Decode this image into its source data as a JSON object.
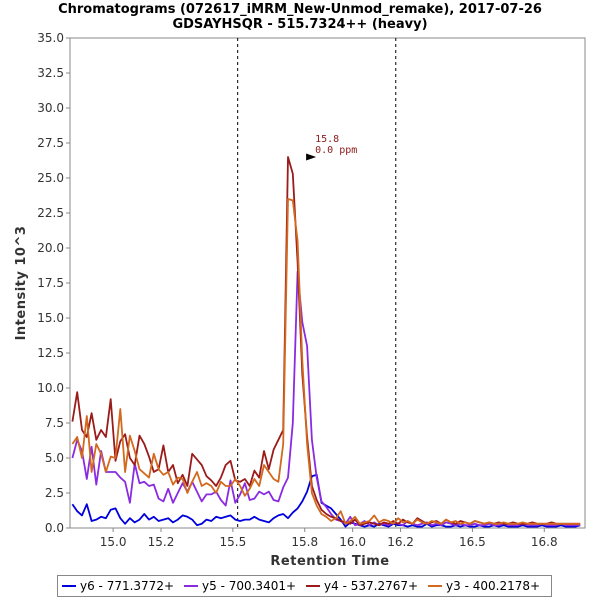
{
  "chart_data": {
    "type": "line",
    "title": "Chromatograms (072617_iMRM_New-Unmod_remake), 2017-07-26",
    "subtitle": "GDSAYHSQR - 515.7324++ (heavy)",
    "xlabel": "Retention Time",
    "ylabel": "Intensity 10^3",
    "xlim": [
      14.82,
      16.97
    ],
    "ylim": [
      0,
      35
    ],
    "x_ticks": [
      "15.0",
      "15.2",
      "15.5",
      "15.8",
      "16.0",
      "16.2",
      "16.5",
      "16.8"
    ],
    "x_tick_values": [
      15.0,
      15.2,
      15.5,
      15.8,
      16.0,
      16.2,
      16.5,
      16.8
    ],
    "y_ticks": [
      "0.0",
      "2.5",
      "5.0",
      "7.5",
      "10.0",
      "12.5",
      "15.0",
      "17.5",
      "20.0",
      "22.5",
      "25.0",
      "27.5",
      "30.0",
      "32.5",
      "35.0"
    ],
    "y_tick_values": [
      0,
      2.5,
      5,
      7.5,
      10,
      12.5,
      15,
      17.5,
      20,
      22.5,
      25,
      27.5,
      30,
      32.5,
      35
    ],
    "boundaries": [
      15.52,
      16.18
    ],
    "grid": false,
    "legend_position": "bottom",
    "annotation": {
      "x": 15.86,
      "y": 26.5,
      "line1": "15.8",
      "line2": "0.0 ppm"
    },
    "series": [
      {
        "name": "y6 - 771.3772+",
        "color": "#0000dd",
        "x": [
          14.83,
          14.85,
          14.87,
          14.89,
          14.91,
          14.93,
          14.95,
          14.97,
          14.99,
          15.01,
          15.03,
          15.05,
          15.07,
          15.09,
          15.11,
          15.13,
          15.15,
          15.17,
          15.19,
          15.21,
          15.23,
          15.25,
          15.27,
          15.29,
          15.31,
          15.33,
          15.35,
          15.37,
          15.39,
          15.41,
          15.43,
          15.45,
          15.47,
          15.49,
          15.51,
          15.53,
          15.55,
          15.57,
          15.59,
          15.61,
          15.63,
          15.65,
          15.67,
          15.69,
          15.71,
          15.73,
          15.75,
          15.77,
          15.79,
          15.81,
          15.83,
          15.85,
          15.87,
          15.89,
          15.91,
          15.93,
          15.95,
          15.97,
          15.99,
          16.01,
          16.03,
          16.05,
          16.07,
          16.09,
          16.11,
          16.13,
          16.15,
          16.17,
          16.19,
          16.21,
          16.23,
          16.25,
          16.27,
          16.29,
          16.31,
          16.33,
          16.35,
          16.37,
          16.39,
          16.41,
          16.43,
          16.45,
          16.47,
          16.49,
          16.51,
          16.53,
          16.55,
          16.57,
          16.59,
          16.61,
          16.63,
          16.65,
          16.67,
          16.69,
          16.71,
          16.73,
          16.75,
          16.77,
          16.79,
          16.81,
          16.83,
          16.85,
          16.87,
          16.89,
          16.91,
          16.93,
          16.95
        ],
        "values": [
          1.7,
          1.2,
          0.9,
          1.7,
          0.5,
          0.6,
          0.8,
          0.7,
          1.3,
          1.4,
          0.7,
          0.3,
          0.7,
          0.4,
          0.6,
          1.0,
          0.6,
          0.8,
          0.5,
          0.6,
          0.7,
          0.4,
          0.6,
          0.9,
          0.8,
          0.6,
          0.2,
          0.3,
          0.6,
          0.5,
          0.8,
          0.7,
          0.8,
          0.9,
          0.6,
          0.5,
          0.6,
          0.6,
          0.8,
          0.6,
          0.5,
          0.4,
          0.7,
          0.9,
          1.0,
          0.7,
          1.1,
          1.4,
          1.9,
          2.6,
          3.7,
          3.8,
          1.8,
          1.6,
          1.4,
          1.0,
          0.6,
          0.1,
          0.4,
          0.3,
          0.2,
          0.1,
          0.2,
          0.1,
          0.3,
          0.2,
          0.1,
          0.3,
          0.2,
          0.2,
          0.1,
          0.2,
          0.1,
          0.1,
          0.3,
          0.1,
          0.2,
          0.2,
          0.1,
          0.1,
          0.2,
          0.1,
          0.2,
          0.1,
          0.1,
          0.2,
          0.1,
          0.1,
          0.2,
          0.1,
          0.2,
          0.1,
          0.1,
          0.1,
          0.2,
          0.1,
          0.1,
          0.1,
          0.2,
          0.1,
          0.1,
          0.1,
          0.2,
          0.1,
          0.1,
          0.1,
          0.2
        ]
      },
      {
        "name": "y5 - 700.3401+",
        "color": "#8a2be2",
        "x": [
          14.83,
          14.85,
          14.87,
          14.89,
          14.91,
          14.93,
          14.95,
          14.97,
          14.99,
          15.01,
          15.03,
          15.05,
          15.07,
          15.09,
          15.11,
          15.13,
          15.15,
          15.17,
          15.19,
          15.21,
          15.23,
          15.25,
          15.27,
          15.29,
          15.31,
          15.33,
          15.35,
          15.37,
          15.39,
          15.41,
          15.43,
          15.45,
          15.47,
          15.49,
          15.51,
          15.53,
          15.55,
          15.57,
          15.59,
          15.61,
          15.63,
          15.65,
          15.67,
          15.69,
          15.71,
          15.73,
          15.75,
          15.77,
          15.79,
          15.81,
          15.83,
          15.85,
          15.87,
          15.89,
          15.91,
          15.93,
          15.95,
          15.97,
          15.99,
          16.01,
          16.03,
          16.05,
          16.07,
          16.09,
          16.11,
          16.13,
          16.15,
          16.17,
          16.19,
          16.21,
          16.23,
          16.25,
          16.27,
          16.29,
          16.31,
          16.33,
          16.35,
          16.37,
          16.39,
          16.41,
          16.43,
          16.45,
          16.47,
          16.49,
          16.51,
          16.53,
          16.55,
          16.57,
          16.59,
          16.61,
          16.63,
          16.65,
          16.67,
          16.69,
          16.71,
          16.73,
          16.75,
          16.77,
          16.79,
          16.81,
          16.83,
          16.85,
          16.87,
          16.89,
          16.91,
          16.93,
          16.95
        ],
        "values": [
          5.0,
          6.3,
          5.5,
          3.5,
          5.8,
          3.1,
          5.5,
          4.0,
          4.0,
          4.0,
          3.6,
          3.3,
          1.8,
          4.6,
          3.2,
          3.3,
          3.0,
          3.1,
          2.1,
          1.9,
          2.8,
          1.8,
          2.5,
          3.2,
          2.6,
          3.3,
          2.6,
          1.9,
          2.4,
          2.4,
          2.6,
          2.0,
          1.6,
          3.4,
          1.8,
          2.4,
          3.2,
          2.0,
          2.1,
          2.6,
          2.4,
          2.6,
          2.0,
          1.9,
          2.9,
          3.6,
          7.5,
          18.3,
          14.7,
          13.0,
          6.3,
          3.6,
          1.9,
          1.5,
          1.0,
          0.6,
          0.5,
          0.3,
          0.8,
          0.2,
          0.3,
          0.5,
          0.2,
          0.4,
          0.2,
          0.3,
          0.2,
          0.4,
          0.3,
          0.2,
          0.5,
          0.3,
          0.2,
          0.3,
          0.4,
          0.2,
          0.3,
          0.2,
          0.4,
          0.3,
          0.2,
          0.3,
          0.2,
          0.2,
          0.3,
          0.2,
          0.2,
          0.3,
          0.2,
          0.2,
          0.3,
          0.2,
          0.2,
          0.2,
          0.3,
          0.2,
          0.2,
          0.2,
          0.3,
          0.2,
          0.2,
          0.2,
          0.3,
          0.2,
          0.2,
          0.2,
          0.2
        ]
      },
      {
        "name": "y4 - 537.2767+",
        "color": "#9b1b1b",
        "x": [
          14.83,
          14.85,
          14.87,
          14.89,
          14.91,
          14.93,
          14.95,
          14.97,
          14.99,
          15.01,
          15.03,
          15.05,
          15.07,
          15.09,
          15.11,
          15.13,
          15.15,
          15.17,
          15.19,
          15.21,
          15.23,
          15.25,
          15.27,
          15.29,
          15.31,
          15.33,
          15.35,
          15.37,
          15.39,
          15.41,
          15.43,
          15.45,
          15.47,
          15.49,
          15.51,
          15.53,
          15.55,
          15.57,
          15.59,
          15.61,
          15.63,
          15.65,
          15.67,
          15.69,
          15.71,
          15.73,
          15.75,
          15.77,
          15.79,
          15.81,
          15.83,
          15.85,
          15.87,
          15.89,
          15.91,
          15.93,
          15.95,
          15.97,
          15.99,
          16.01,
          16.03,
          16.05,
          16.07,
          16.09,
          16.11,
          16.13,
          16.15,
          16.17,
          16.19,
          16.21,
          16.23,
          16.25,
          16.27,
          16.29,
          16.31,
          16.33,
          16.35,
          16.37,
          16.39,
          16.41,
          16.43,
          16.45,
          16.47,
          16.49,
          16.51,
          16.53,
          16.55,
          16.57,
          16.59,
          16.61,
          16.63,
          16.65,
          16.67,
          16.69,
          16.71,
          16.73,
          16.75,
          16.77,
          16.79,
          16.81,
          16.83,
          16.85,
          16.87,
          16.89,
          16.91,
          16.93,
          16.95
        ],
        "values": [
          7.6,
          9.7,
          7.0,
          6.5,
          8.2,
          6.3,
          7.0,
          6.5,
          9.2,
          4.8,
          6.2,
          6.7,
          5.0,
          4.5,
          6.6,
          6.0,
          5.1,
          4.0,
          4.2,
          5.9,
          4.0,
          4.5,
          3.2,
          3.8,
          3.0,
          5.3,
          4.9,
          4.5,
          3.7,
          3.4,
          3.0,
          3.6,
          4.5,
          4.8,
          3.4,
          3.3,
          3.5,
          3.0,
          4.1,
          3.6,
          5.5,
          4.2,
          5.6,
          6.3,
          7.0,
          26.5,
          25.3,
          19.0,
          11.0,
          6.5,
          3.0,
          2.0,
          1.3,
          1.0,
          0.8,
          0.7,
          0.5,
          0.4,
          0.3,
          0.6,
          0.2,
          0.3,
          0.4,
          0.3,
          0.2,
          0.4,
          0.3,
          0.5,
          0.3,
          0.6,
          0.4,
          0.3,
          0.7,
          0.5,
          0.3,
          0.4,
          0.5,
          0.3,
          0.6,
          0.4,
          0.3,
          0.5,
          0.4,
          0.3,
          0.5,
          0.4,
          0.3,
          0.4,
          0.3,
          0.4,
          0.3,
          0.3,
          0.4,
          0.3,
          0.3,
          0.3,
          0.4,
          0.3,
          0.3,
          0.3,
          0.4,
          0.3,
          0.3,
          0.3,
          0.3,
          0.3,
          0.3
        ]
      },
      {
        "name": "y3 - 400.2178+",
        "color": "#d2691e",
        "x": [
          14.83,
          14.85,
          14.87,
          14.89,
          14.91,
          14.93,
          14.95,
          14.97,
          14.99,
          15.01,
          15.03,
          15.05,
          15.07,
          15.09,
          15.11,
          15.13,
          15.15,
          15.17,
          15.19,
          15.21,
          15.23,
          15.25,
          15.27,
          15.29,
          15.31,
          15.33,
          15.35,
          15.37,
          15.39,
          15.41,
          15.43,
          15.45,
          15.47,
          15.49,
          15.51,
          15.53,
          15.55,
          15.57,
          15.59,
          15.61,
          15.63,
          15.65,
          15.67,
          15.69,
          15.71,
          15.73,
          15.75,
          15.77,
          15.79,
          15.81,
          15.83,
          15.85,
          15.87,
          15.89,
          15.91,
          15.93,
          15.95,
          15.97,
          15.99,
          16.01,
          16.03,
          16.05,
          16.07,
          16.09,
          16.11,
          16.13,
          16.15,
          16.17,
          16.19,
          16.21,
          16.23,
          16.25,
          16.27,
          16.29,
          16.31,
          16.33,
          16.35,
          16.37,
          16.39,
          16.41,
          16.43,
          16.45,
          16.47,
          16.49,
          16.51,
          16.53,
          16.55,
          16.57,
          16.59,
          16.61,
          16.63,
          16.65,
          16.67,
          16.69,
          16.71,
          16.73,
          16.75,
          16.77,
          16.79,
          16.81,
          16.83,
          16.85,
          16.87,
          16.89,
          16.91,
          16.93,
          16.95
        ],
        "values": [
          6.0,
          6.5,
          5.0,
          8.0,
          4.0,
          6.0,
          5.3,
          4.0,
          5.1,
          5.0,
          8.5,
          4.0,
          6.6,
          5.5,
          4.2,
          3.9,
          3.6,
          5.3,
          4.2,
          3.8,
          4.0,
          3.1,
          3.6,
          3.5,
          2.5,
          3.3,
          4.0,
          3.0,
          3.2,
          3.0,
          2.5,
          3.3,
          3.0,
          3.0,
          3.5,
          3.0,
          2.3,
          2.8,
          3.5,
          3.0,
          4.5,
          4.0,
          3.5,
          3.3,
          6.0,
          23.5,
          23.4,
          20.5,
          12.0,
          6.0,
          2.5,
          1.6,
          1.0,
          0.8,
          0.5,
          0.7,
          1.2,
          0.3,
          0.5,
          0.8,
          0.3,
          0.4,
          0.5,
          0.9,
          0.4,
          0.6,
          0.5,
          0.3,
          0.7,
          0.4,
          0.5,
          0.3,
          0.6,
          0.4,
          0.3,
          0.5,
          0.4,
          0.3,
          0.6,
          0.4,
          0.5,
          0.3,
          0.4,
          0.3,
          0.5,
          0.4,
          0.3,
          0.4,
          0.3,
          0.3,
          0.4,
          0.3,
          0.3,
          0.3,
          0.4,
          0.3,
          0.3,
          0.3,
          0.3,
          0.3,
          0.3,
          0.3,
          0.3,
          0.3,
          0.3,
          0.3,
          0.3
        ]
      }
    ]
  }
}
